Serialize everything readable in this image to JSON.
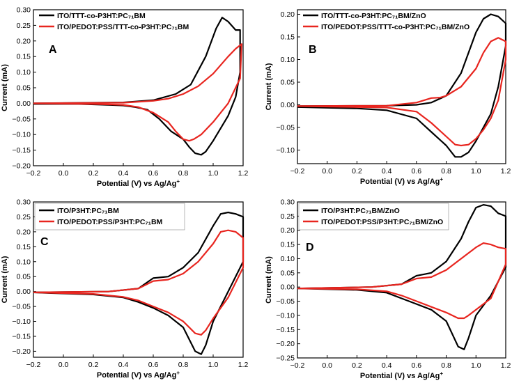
{
  "chart_data": [
    {
      "type": "line",
      "panel_label": "A",
      "xlabel": "Potential (V) vs Ag/Ag",
      "xlabel_sup": "+",
      "ylabel": "Current (mA)",
      "xlim": [
        -0.2,
        1.2
      ],
      "ylim": [
        -0.2,
        0.3
      ],
      "xticks": [
        "-0.2",
        "0.0",
        "0.2",
        "0.4",
        "0.6",
        "0.8",
        "1.0",
        "1.2"
      ],
      "yticks": [
        "-0.20",
        "-0.15",
        "-0.10",
        "-0.05",
        "0.00",
        "0.05",
        "0.10",
        "0.15",
        "0.20",
        "0.25",
        "0.30"
      ],
      "legend_position": "top-left",
      "series": [
        {
          "name": "ITO/TTT-co-P3HT:PC₇₁BM",
          "color": "#000000",
          "x": [
            -0.2,
            0.4,
            0.6,
            0.75,
            0.85,
            0.95,
            1.02,
            1.06,
            1.1,
            1.15,
            1.18,
            1.18,
            1.15,
            1.1,
            1.05,
            1.0,
            0.95,
            0.92,
            0.88,
            0.84,
            0.8,
            0.72,
            0.64,
            0.56,
            0.48,
            0.4,
            0.3,
            0.1,
            -0.2
          ],
          "y": [
            0.0,
            0.003,
            0.01,
            0.03,
            0.06,
            0.15,
            0.24,
            0.275,
            0.262,
            0.235,
            0.235,
            0.1,
            0.02,
            -0.04,
            -0.08,
            -0.12,
            -0.155,
            -0.165,
            -0.16,
            -0.14,
            -0.115,
            -0.09,
            -0.05,
            -0.02,
            -0.012,
            -0.007,
            -0.005,
            -0.002,
            -0.002
          ]
        },
        {
          "name": "ITO/PEDOT:PSS/TTT-co-P3HT:PC₇₁BM",
          "color": "#e8251f",
          "x": [
            -0.2,
            0.4,
            0.6,
            0.7,
            0.8,
            0.9,
            1.0,
            1.1,
            1.15,
            1.19,
            1.18,
            1.1,
            1.0,
            0.92,
            0.87,
            0.84,
            0.8,
            0.75,
            0.7,
            0.6,
            0.5,
            0.4,
            0.2,
            -0.2
          ],
          "y": [
            0.0,
            0.002,
            0.008,
            0.015,
            0.03,
            0.055,
            0.095,
            0.15,
            0.175,
            0.19,
            0.08,
            0.0,
            -0.06,
            -0.1,
            -0.115,
            -0.12,
            -0.115,
            -0.09,
            -0.06,
            -0.03,
            -0.012,
            -0.005,
            -0.002,
            0.0
          ]
        }
      ]
    },
    {
      "type": "line",
      "panel_label": "B",
      "xlabel": "Potential (V) vs Ag/Ag",
      "xlabel_sup": "+",
      "ylabel": "Current (mA)",
      "xlim": [
        -0.2,
        1.2
      ],
      "ylim": [
        -0.13,
        0.21
      ],
      "xticks": [
        "-0.2",
        "0.0",
        "0.2",
        "0.4",
        "0.6",
        "0.8",
        "1.0",
        "1.2"
      ],
      "yticks": [
        "-0.10",
        "-0.05",
        "0.00",
        "0.05",
        "0.10",
        "0.15",
        "0.20"
      ],
      "legend_position": "top-left",
      "series": [
        {
          "name": "ITO/TTT-co-P3HT:PC₇₁BM/ZnO",
          "color": "#000000",
          "x": [
            -0.2,
            0.4,
            0.6,
            0.7,
            0.8,
            0.9,
            1.0,
            1.05,
            1.1,
            1.15,
            1.2,
            1.2,
            1.15,
            1.1,
            1.05,
            1.0,
            0.95,
            0.9,
            0.86,
            0.8,
            0.7,
            0.6,
            0.4,
            0.2,
            -0.2
          ],
          "y": [
            -0.003,
            -0.002,
            0.0,
            0.005,
            0.02,
            0.07,
            0.16,
            0.19,
            0.2,
            0.195,
            0.18,
            0.13,
            0.04,
            -0.02,
            -0.05,
            -0.08,
            -0.105,
            -0.115,
            -0.115,
            -0.09,
            -0.06,
            -0.03,
            -0.012,
            -0.008,
            -0.005
          ]
        },
        {
          "name": "ITO/PEDOT:PSS/TTT-co-P3HT:PC₇₁BM/ZnO",
          "color": "#e8251f",
          "x": [
            -0.2,
            0.4,
            0.6,
            0.7,
            0.76,
            0.8,
            0.9,
            1.0,
            1.05,
            1.1,
            1.15,
            1.2,
            1.2,
            1.15,
            1.1,
            1.05,
            1.0,
            0.95,
            0.9,
            0.86,
            0.8,
            0.7,
            0.6,
            0.4,
            -0.2
          ],
          "y": [
            -0.003,
            -0.002,
            0.005,
            0.015,
            0.016,
            0.02,
            0.04,
            0.08,
            0.115,
            0.14,
            0.148,
            0.14,
            0.1,
            0.01,
            -0.03,
            -0.055,
            -0.075,
            -0.088,
            -0.09,
            -0.088,
            -0.07,
            -0.04,
            -0.015,
            -0.006,
            -0.003
          ]
        }
      ]
    },
    {
      "type": "line",
      "panel_label": "C",
      "xlabel": "Potential (V) vs Ag/Ag",
      "xlabel_sup": "+",
      "ylabel": "Current (mA)",
      "xlim": [
        -0.2,
        1.2
      ],
      "ylim": [
        -0.22,
        0.3
      ],
      "xticks": [
        "-0.2",
        "0.0",
        "0.2",
        "0.4",
        "0.6",
        "0.8",
        "1.0",
        "1.2"
      ],
      "yticks": [
        "-0.20",
        "-0.15",
        "-0.10",
        "-0.05",
        "0.00",
        "0.05",
        "0.10",
        "0.15",
        "0.20",
        "0.25",
        "0.30"
      ],
      "legend_position": "top-left",
      "series": [
        {
          "name": "ITO/P3HT:PC₇₁BM",
          "color": "#000000",
          "x": [
            -0.2,
            0.3,
            0.5,
            0.6,
            0.7,
            0.8,
            0.9,
            1.0,
            1.05,
            1.1,
            1.15,
            1.2,
            1.2,
            1.1,
            1.0,
            0.95,
            0.92,
            0.88,
            0.8,
            0.7,
            0.6,
            0.5,
            0.4,
            0.2,
            -0.1,
            -0.2
          ],
          "y": [
            -0.003,
            0.0,
            0.01,
            0.045,
            0.05,
            0.08,
            0.13,
            0.22,
            0.26,
            0.265,
            0.26,
            0.25,
            0.1,
            0.0,
            -0.1,
            -0.18,
            -0.21,
            -0.2,
            -0.12,
            -0.08,
            -0.055,
            -0.035,
            -0.02,
            -0.01,
            -0.005,
            -0.003
          ]
        },
        {
          "name": "ITO/PEDOT:PSS/P3HT:PC₇₁BM",
          "color": "#e8251f",
          "x": [
            -0.2,
            0.3,
            0.5,
            0.6,
            0.7,
            0.8,
            0.9,
            1.0,
            1.05,
            1.1,
            1.15,
            1.2,
            1.2,
            1.1,
            1.0,
            0.95,
            0.92,
            0.88,
            0.8,
            0.7,
            0.6,
            0.5,
            0.4,
            0.2,
            -0.2
          ],
          "y": [
            -0.003,
            0.0,
            0.01,
            0.035,
            0.04,
            0.06,
            0.1,
            0.16,
            0.2,
            0.205,
            0.2,
            0.18,
            0.08,
            -0.02,
            -0.09,
            -0.13,
            -0.145,
            -0.14,
            -0.1,
            -0.07,
            -0.05,
            -0.03,
            -0.018,
            -0.008,
            -0.003
          ]
        }
      ]
    },
    {
      "type": "line",
      "panel_label": "D",
      "xlabel": "Potential (V) vs Ag/Ag",
      "xlabel_sup": "+",
      "ylabel": "Current (mA)",
      "xlim": [
        -0.2,
        1.2
      ],
      "ylim": [
        -0.25,
        0.3
      ],
      "xticks": [
        "-0.2",
        "0.0",
        "0.2",
        "0.4",
        "0.6",
        "0.8",
        "1.0",
        "1.2"
      ],
      "yticks": [
        "-0.25",
        "-0.20",
        "-0.15",
        "-0.10",
        "-0.05",
        "0.00",
        "0.05",
        "0.10",
        "0.15",
        "0.20",
        "0.25",
        "0.30"
      ],
      "legend_position": "top-left",
      "series": [
        {
          "name": "ITO/P3HT:PC₇₁BM/ZnO",
          "color": "#000000",
          "x": [
            -0.2,
            0.3,
            0.5,
            0.6,
            0.65,
            0.7,
            0.8,
            0.9,
            0.95,
            1.0,
            1.05,
            1.1,
            1.15,
            1.2,
            1.2,
            1.1,
            1.0,
            0.95,
            0.92,
            0.88,
            0.8,
            0.7,
            0.6,
            0.5,
            0.4,
            0.2,
            -0.2
          ],
          "y": [
            -0.005,
            0.0,
            0.01,
            0.04,
            0.045,
            0.05,
            0.09,
            0.17,
            0.23,
            0.28,
            0.29,
            0.285,
            0.26,
            0.25,
            0.07,
            -0.03,
            -0.1,
            -0.18,
            -0.22,
            -0.21,
            -0.12,
            -0.08,
            -0.06,
            -0.04,
            -0.02,
            -0.01,
            -0.005
          ]
        },
        {
          "name": "ITO/PEDOT:PSS/P3HT:PC₇₁BM/ZnO",
          "color": "#e8251f",
          "x": [
            -0.2,
            0.3,
            0.5,
            0.6,
            0.7,
            0.8,
            0.9,
            1.0,
            1.05,
            1.1,
            1.15,
            1.2,
            1.2,
            1.1,
            1.0,
            0.95,
            0.92,
            0.88,
            0.8,
            0.7,
            0.6,
            0.5,
            0.4,
            0.2,
            -0.2
          ],
          "y": [
            -0.005,
            0.0,
            0.01,
            0.03,
            0.035,
            0.06,
            0.1,
            0.14,
            0.155,
            0.15,
            0.14,
            0.135,
            0.08,
            -0.04,
            -0.08,
            -0.1,
            -0.11,
            -0.11,
            -0.09,
            -0.07,
            -0.05,
            -0.03,
            -0.015,
            -0.008,
            -0.005
          ]
        }
      ]
    }
  ]
}
